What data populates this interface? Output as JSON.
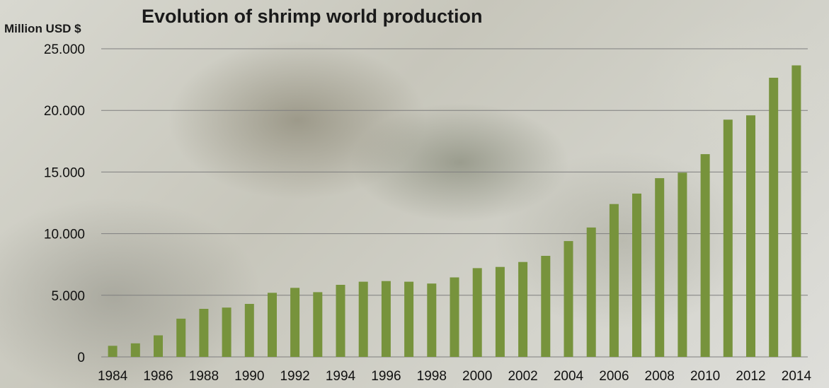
{
  "chart_data": {
    "type": "bar",
    "title": "Evolution of shrimp world production",
    "ylabel": "Million USD $",
    "xlabel": "",
    "ylim": [
      0,
      25000
    ],
    "yticks": [
      "0",
      "5.000",
      "10.000",
      "15.000",
      "20.000",
      "25.000"
    ],
    "grid": "horizontal",
    "legend": "none",
    "bar_color": "#77933c",
    "categories": [
      "1984",
      "1985",
      "1986",
      "1987",
      "1988",
      "1989",
      "1990",
      "1991",
      "1992",
      "1993",
      "1994",
      "1995",
      "1996",
      "1997",
      "1998",
      "1999",
      "2000",
      "2001",
      "2002",
      "2003",
      "2004",
      "2005",
      "2006",
      "2007",
      "2008",
      "2009",
      "2010",
      "2011",
      "2012",
      "2013",
      "2014"
    ],
    "xtick_labels": [
      "1984",
      "1986",
      "1988",
      "1990",
      "1992",
      "1994",
      "1996",
      "1998",
      "2000",
      "2002",
      "2004",
      "2006",
      "2008",
      "2010",
      "2012",
      "2014"
    ],
    "values": [
      900,
      1100,
      1750,
      3100,
      3900,
      4000,
      4300,
      5200,
      5600,
      5250,
      5850,
      6100,
      6150,
      6100,
      5950,
      6450,
      7200,
      7300,
      7700,
      8200,
      9400,
      10500,
      12400,
      13250,
      14500,
      14950,
      16450,
      19250,
      19600,
      22650,
      23650
    ]
  }
}
